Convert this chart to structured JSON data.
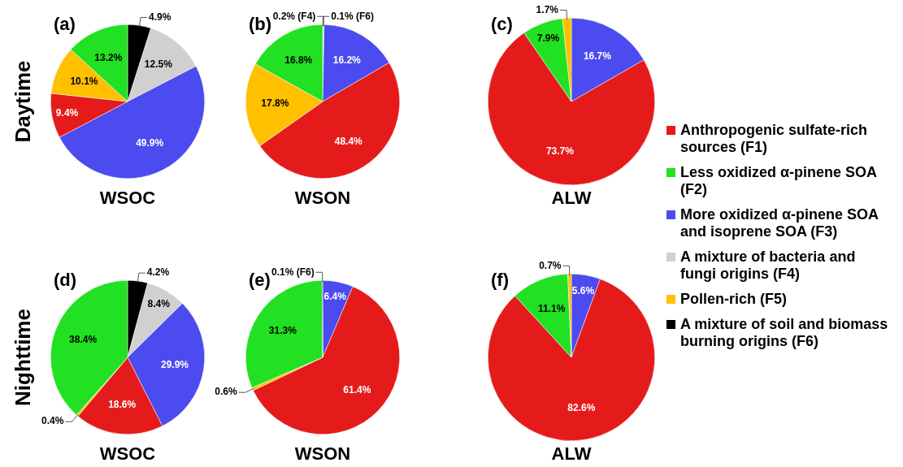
{
  "chart_data": [
    {
      "type": "pie",
      "title": "(a)",
      "ylabel": "Daytime",
      "xlabel": "WSOC",
      "categories": [
        null,
        null,
        null,
        null,
        null,
        null
      ],
      "values": [
        4.9,
        12.5,
        49.9,
        9.4,
        10.1,
        13.2
      ],
      "colors": [
        "#000000",
        "#d0d0d0",
        "#4b4bf0",
        "#e51b1b",
        "#ffc000",
        "#22e022"
      ],
      "value_labels": [
        "4.9%",
        "12.5%",
        "49.9%",
        "9.4%",
        "10.1%",
        "13.2%"
      ]
    },
    {
      "type": "pie",
      "title": "(b)",
      "xlabel": "WSON",
      "categories": [
        null,
        null,
        null,
        null,
        null,
        null
      ],
      "values": [
        0.1,
        0.2,
        16.2,
        48.4,
        17.8,
        16.8
      ],
      "colors": [
        "#000000",
        "#d0d0d0",
        "#4b4bf0",
        "#e51b1b",
        "#ffc000",
        "#22e022"
      ],
      "value_labels": [
        "0.1% (F6)",
        "0.2% (F4)",
        "16.2%",
        "48.4%",
        "17.8%",
        "16.8%"
      ]
    },
    {
      "type": "pie",
      "title": "(c)",
      "xlabel": "ALW",
      "categories": [
        null,
        null,
        null,
        null
      ],
      "values": [
        16.7,
        73.7,
        7.9,
        1.7
      ],
      "colors": [
        "#4b4bf0",
        "#e51b1b",
        "#22e022",
        "#ffc000"
      ],
      "value_labels": [
        "16.7%",
        "73.7%",
        "7.9%",
        "1.7%"
      ]
    },
    {
      "type": "pie",
      "title": "(d)",
      "ylabel": "Nighttime",
      "xlabel": "WSOC",
      "categories": [
        null,
        null,
        null,
        null,
        null,
        null
      ],
      "values": [
        4.2,
        8.4,
        29.9,
        18.6,
        0.4,
        38.4
      ],
      "colors": [
        "#000000",
        "#d0d0d0",
        "#4b4bf0",
        "#e51b1b",
        "#ffc000",
        "#22e022"
      ],
      "value_labels": [
        "4.2%",
        "8.4%",
        "29.9%",
        "18.6%",
        "0.4%",
        "38.4%"
      ]
    },
    {
      "type": "pie",
      "title": "(e)",
      "xlabel": "WSON",
      "categories": [
        null,
        null,
        null,
        null,
        null
      ],
      "values": [
        6.4,
        61.4,
        0.6,
        31.3,
        0.1
      ],
      "colors": [
        "#4b4bf0",
        "#e51b1b",
        "#ffc000",
        "#22e022",
        "#000000"
      ],
      "value_labels": [
        "6.4%",
        "61.4%",
        "0.6%",
        "31.3%",
        "0.1% (F6)"
      ]
    },
    {
      "type": "pie",
      "title": "(f)",
      "xlabel": "ALW",
      "categories": [
        null,
        null,
        null,
        null
      ],
      "values": [
        5.6,
        82.6,
        11.1,
        0.7
      ],
      "colors": [
        "#4b4bf0",
        "#e51b1b",
        "#22e022",
        "#ffc000"
      ],
      "value_labels": [
        "5.6%",
        "82.6%",
        "11.1%",
        "0.7%"
      ]
    },
    {
      "type": "other",
      "categories": [
        "Anthropogenic sulfate-rich sources (F1)",
        "Less oxidized α-pinene SOA (F2)",
        "More oxidized α-pinene SOA and isoprene SOA (F3)",
        "A mixture of bacteria and fungi origins (F4)",
        "Pollen-rich (F5)",
        "A mixture of soil and biomass burning origins (F6)"
      ],
      "colors": [
        "#e51b1b",
        "#22e022",
        "#4b4bf0",
        "#d0d0d0",
        "#ffc000",
        "#000000"
      ]
    }
  ]
}
